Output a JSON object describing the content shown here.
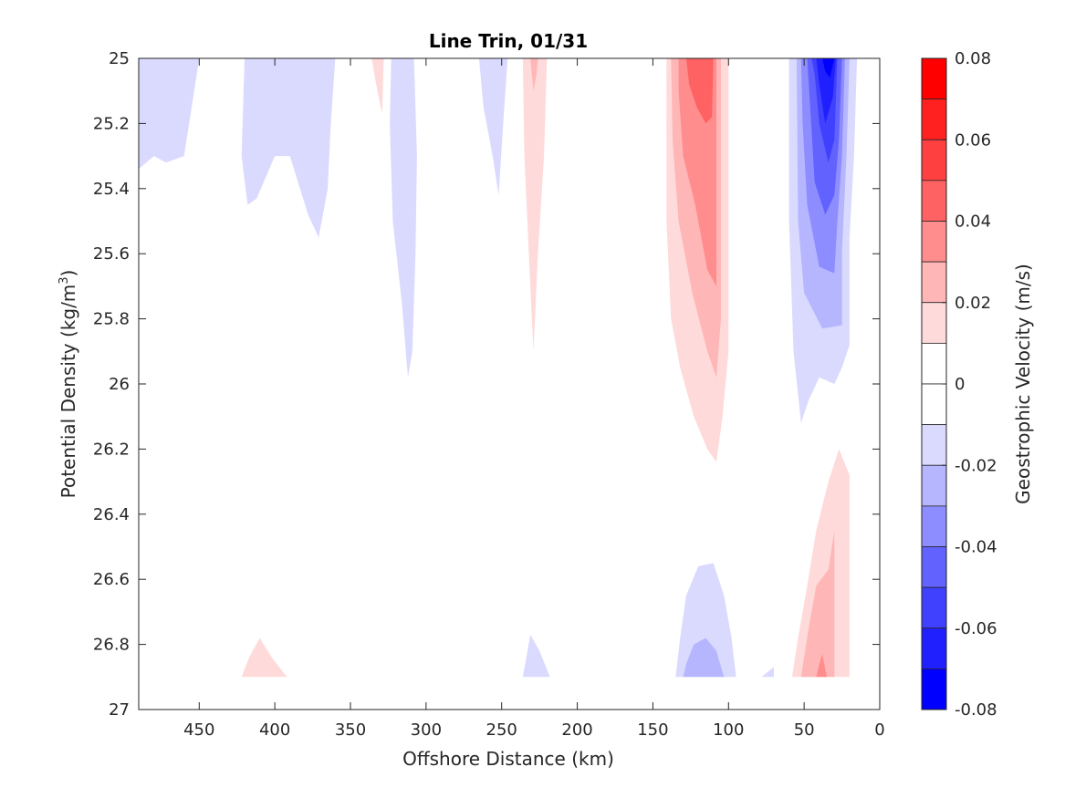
{
  "chart_data": {
    "type": "contour",
    "title": "Line Trin, 01/31",
    "xlabel": "Offshore Distance (km)",
    "ylabel": "Potential Density (kg/m",
    "ylabel_sup": "3",
    "ylabel_close": ")",
    "colorbar_label": "Geostrophic Velocity (m/s)",
    "xlim": [
      490,
      0
    ],
    "ylim": [
      25,
      27
    ],
    "x_reversed": true,
    "y_reversed": true,
    "x_ticks": [
      450,
      400,
      350,
      300,
      250,
      200,
      150,
      100,
      50,
      0
    ],
    "x_tick_labels": [
      "450",
      "400",
      "350",
      "300",
      "250",
      "200",
      "150",
      "100",
      "50",
      "0"
    ],
    "y_ticks": [
      25,
      25.2,
      25.4,
      25.6,
      25.8,
      26,
      26.2,
      26.4,
      26.6,
      26.8,
      27
    ],
    "y_tick_labels": [
      "25",
      "25.2",
      "25.4",
      "25.6",
      "25.8",
      "26",
      "26.2",
      "26.4",
      "26.6",
      "26.8",
      "27"
    ],
    "colorbar": {
      "range": [
        -0.08,
        0.08
      ],
      "ticks": [
        0.08,
        0.06,
        0.04,
        0.02,
        0,
        -0.02,
        -0.04,
        -0.06,
        -0.08
      ],
      "tick_labels": [
        "0.08",
        "0.06",
        "0.04",
        "0.02",
        "0",
        "-0.02",
        "-0.04",
        "-0.06",
        "-0.08"
      ],
      "levels": [
        {
          "lo": 0.07,
          "hi": 0.08,
          "color": "#ff0000"
        },
        {
          "lo": 0.06,
          "hi": 0.07,
          "color": "#ff2020"
        },
        {
          "lo": 0.05,
          "hi": 0.06,
          "color": "#ff4040"
        },
        {
          "lo": 0.04,
          "hi": 0.05,
          "color": "#ff6262"
        },
        {
          "lo": 0.03,
          "hi": 0.04,
          "color": "#ff8d8d"
        },
        {
          "lo": 0.02,
          "hi": 0.03,
          "color": "#ffb6b6"
        },
        {
          "lo": 0.01,
          "hi": 0.02,
          "color": "#ffdada"
        },
        {
          "lo": 0.0,
          "hi": 0.01,
          "color": "#ffffff"
        },
        {
          "lo": -0.01,
          "hi": 0.0,
          "color": "#ffffff"
        },
        {
          "lo": -0.02,
          "hi": -0.01,
          "color": "#dadaff"
        },
        {
          "lo": -0.03,
          "hi": -0.02,
          "color": "#b6b6ff"
        },
        {
          "lo": -0.04,
          "hi": -0.03,
          "color": "#8d8dff"
        },
        {
          "lo": -0.05,
          "hi": -0.04,
          "color": "#6262ff"
        },
        {
          "lo": -0.06,
          "hi": -0.05,
          "color": "#4040ff"
        },
        {
          "lo": -0.07,
          "hi": -0.06,
          "color": "#2020ff"
        },
        {
          "lo": -0.08,
          "hi": -0.07,
          "color": "#0000ff"
        }
      ]
    },
    "contour_regions": [
      {
        "name": "neg-region-offshore-far",
        "level": -0.015,
        "color": "#dadaff",
        "points": [
          [
            490,
            25
          ],
          [
            450,
            25
          ],
          [
            460,
            25.3
          ],
          [
            472,
            25.32
          ],
          [
            480,
            25.3
          ],
          [
            490,
            25.34
          ]
        ]
      },
      {
        "name": "neg-region-offshore-mid",
        "level": -0.015,
        "color": "#dadaff",
        "points": [
          [
            420,
            25
          ],
          [
            360,
            25
          ],
          [
            363,
            25.2
          ],
          [
            365,
            25.4
          ],
          [
            371,
            25.55
          ],
          [
            378,
            25.48
          ],
          [
            390,
            25.3
          ],
          [
            400,
            25.3
          ],
          [
            412,
            25.43
          ],
          [
            418,
            25.45
          ],
          [
            422,
            25.3
          ]
        ]
      },
      {
        "name": "neg-region-300km",
        "level": -0.015,
        "color": "#dadaff",
        "points": [
          [
            323,
            25
          ],
          [
            308,
            25
          ],
          [
            306,
            25.3
          ],
          [
            307,
            25.6
          ],
          [
            309,
            25.9
          ],
          [
            312,
            25.98
          ],
          [
            316,
            25.75
          ],
          [
            322,
            25.5
          ],
          [
            324,
            25.2
          ]
        ]
      },
      {
        "name": "neg-region-255km",
        "level": -0.015,
        "color": "#dadaff",
        "points": [
          [
            265,
            25
          ],
          [
            246,
            25
          ],
          [
            249,
            25.2
          ],
          [
            252,
            25.42
          ],
          [
            256,
            25.3
          ],
          [
            262,
            25.15
          ]
        ]
      },
      {
        "name": "neg-region-coastal-1",
        "level": -0.015,
        "color": "#dadaff",
        "points": [
          [
            60,
            25
          ],
          [
            15,
            25
          ],
          [
            17,
            25.3
          ],
          [
            20,
            25.55
          ],
          [
            20,
            25.88
          ],
          [
            25,
            25.95
          ],
          [
            30,
            26.0
          ],
          [
            40,
            25.98
          ],
          [
            47,
            26.05
          ],
          [
            52,
            26.12
          ],
          [
            57,
            25.9
          ],
          [
            60,
            25.5
          ]
        ]
      },
      {
        "name": "neg-region-coastal-2",
        "level": -0.025,
        "color": "#b6b6ff",
        "points": [
          [
            55,
            25
          ],
          [
            20,
            25
          ],
          [
            22,
            25.3
          ],
          [
            25,
            25.6
          ],
          [
            25,
            25.82
          ],
          [
            38,
            25.83
          ],
          [
            50,
            25.72
          ],
          [
            54,
            25.5
          ]
        ]
      },
      {
        "name": "neg-region-coastal-3",
        "level": -0.035,
        "color": "#8d8dff",
        "points": [
          [
            52,
            25
          ],
          [
            23,
            25
          ],
          [
            25,
            25.3
          ],
          [
            28,
            25.5
          ],
          [
            30,
            25.66
          ],
          [
            40,
            25.64
          ],
          [
            48,
            25.45
          ],
          [
            51,
            25.2
          ]
        ]
      },
      {
        "name": "neg-region-coastal-4",
        "level": -0.045,
        "color": "#6262ff",
        "points": [
          [
            48,
            25
          ],
          [
            25,
            25
          ],
          [
            27,
            25.25
          ],
          [
            30,
            25.42
          ],
          [
            36,
            25.48
          ],
          [
            43,
            25.38
          ],
          [
            46,
            25.15
          ]
        ]
      },
      {
        "name": "neg-region-coastal-5",
        "level": -0.055,
        "color": "#4040ff",
        "points": [
          [
            45,
            25
          ],
          [
            28,
            25
          ],
          [
            30,
            25.25
          ],
          [
            34,
            25.32
          ],
          [
            40,
            25.2
          ],
          [
            43,
            25.05
          ]
        ]
      },
      {
        "name": "neg-region-coastal-6",
        "level": -0.065,
        "color": "#2020ff",
        "points": [
          [
            42,
            25
          ],
          [
            29,
            25
          ],
          [
            31,
            25.12
          ],
          [
            36,
            25.2
          ],
          [
            40,
            25.08
          ]
        ]
      },
      {
        "name": "neg-region-coastal-7",
        "level": -0.075,
        "color": "#0000ff",
        "points": [
          [
            38,
            25
          ],
          [
            30,
            25
          ],
          [
            33,
            25.06
          ],
          [
            36,
            25.04
          ]
        ]
      },
      {
        "name": "pos-region-335km",
        "level": 0.015,
        "color": "#ffdada",
        "points": [
          [
            336,
            25
          ],
          [
            328,
            25
          ],
          [
            329,
            25.17
          ],
          [
            333,
            25.08
          ]
        ]
      },
      {
        "name": "pos-region-230km",
        "level": 0.015,
        "color": "#ffdada",
        "points": [
          [
            236,
            25
          ],
          [
            220,
            25
          ],
          [
            222,
            25.3
          ],
          [
            226,
            25.6
          ],
          [
            229,
            25.9
          ],
          [
            232,
            25.6
          ],
          [
            235,
            25.3
          ]
        ]
      },
      {
        "name": "pos-region-230km-core",
        "level": 0.025,
        "color": "#ffb6b6",
        "points": [
          [
            231,
            25
          ],
          [
            226,
            25
          ],
          [
            227,
            25.05
          ],
          [
            229,
            25.1
          ],
          [
            230,
            25.05
          ]
        ]
      },
      {
        "name": "pos-region-120km-1",
        "level": 0.015,
        "color": "#ffdada",
        "points": [
          [
            141,
            25
          ],
          [
            100,
            25
          ],
          [
            100,
            25.4
          ],
          [
            100,
            25.9
          ],
          [
            104,
            26.1
          ],
          [
            108,
            26.24
          ],
          [
            114,
            26.2
          ],
          [
            123,
            26.1
          ],
          [
            132,
            25.95
          ],
          [
            138,
            25.8
          ],
          [
            141,
            25.5
          ]
        ]
      },
      {
        "name": "pos-region-120km-2",
        "level": 0.025,
        "color": "#ffb6b6",
        "points": [
          [
            138,
            25
          ],
          [
            105,
            25
          ],
          [
            105,
            25.4
          ],
          [
            105,
            25.8
          ],
          [
            108,
            25.98
          ],
          [
            114,
            25.9
          ],
          [
            124,
            25.72
          ],
          [
            133,
            25.5
          ],
          [
            137,
            25.25
          ]
        ]
      },
      {
        "name": "pos-region-120km-3",
        "level": 0.035,
        "color": "#ff8d8d",
        "points": [
          [
            133,
            25
          ],
          [
            108,
            25
          ],
          [
            108,
            25.35
          ],
          [
            108,
            25.7
          ],
          [
            114,
            25.65
          ],
          [
            122,
            25.45
          ],
          [
            130,
            25.3
          ],
          [
            133,
            25.1
          ]
        ]
      },
      {
        "name": "pos-region-120km-4",
        "level": 0.045,
        "color": "#ff6262",
        "points": [
          [
            128,
            25
          ],
          [
            110,
            25
          ],
          [
            111,
            25.18
          ],
          [
            115,
            25.2
          ],
          [
            121,
            25.15
          ],
          [
            126,
            25.08
          ]
        ]
      },
      {
        "name": "pos-region-coastal-deep-1",
        "level": 0.015,
        "color": "#ffdada",
        "points": [
          [
            58,
            26.9
          ],
          [
            20,
            26.9
          ],
          [
            20,
            26.6
          ],
          [
            20,
            26.28
          ],
          [
            27,
            26.2
          ],
          [
            34,
            26.3
          ],
          [
            42,
            26.45
          ],
          [
            48,
            26.62
          ],
          [
            54,
            26.78
          ]
        ]
      },
      {
        "name": "pos-region-coastal-deep-2",
        "level": 0.025,
        "color": "#ffb6b6",
        "points": [
          [
            52,
            26.9
          ],
          [
            30,
            26.9
          ],
          [
            30,
            26.7
          ],
          [
            30,
            26.45
          ],
          [
            34,
            26.57
          ],
          [
            42,
            26.62
          ],
          [
            47,
            26.75
          ]
        ]
      },
      {
        "name": "pos-region-coastal-deep-3",
        "level": 0.035,
        "color": "#ff8d8d",
        "points": [
          [
            42,
            26.9
          ],
          [
            35,
            26.9
          ],
          [
            38,
            26.83
          ],
          [
            40,
            26.86
          ]
        ]
      },
      {
        "name": "pos-region-410km",
        "level": 0.015,
        "color": "#ffdada",
        "points": [
          [
            422,
            26.9
          ],
          [
            392,
            26.9
          ],
          [
            402,
            26.84
          ],
          [
            410,
            26.78
          ],
          [
            417,
            26.84
          ]
        ]
      },
      {
        "name": "neg-region-deep-120km-1",
        "level": -0.015,
        "color": "#dadaff",
        "points": [
          [
            135,
            26.9
          ],
          [
            95,
            26.9
          ],
          [
            98,
            26.78
          ],
          [
            103,
            26.65
          ],
          [
            110,
            26.55
          ],
          [
            120,
            26.56
          ],
          [
            128,
            26.65
          ],
          [
            132,
            26.78
          ]
        ]
      },
      {
        "name": "neg-region-deep-120km-2",
        "level": -0.025,
        "color": "#b6b6ff",
        "points": [
          [
            130,
            26.9
          ],
          [
            103,
            26.9
          ],
          [
            108,
            26.82
          ],
          [
            115,
            26.78
          ],
          [
            123,
            26.8
          ],
          [
            128,
            26.86
          ]
        ]
      },
      {
        "name": "neg-region-deep-230km",
        "level": -0.015,
        "color": "#dadaff",
        "points": [
          [
            236,
            26.9
          ],
          [
            218,
            26.9
          ],
          [
            225,
            26.82
          ],
          [
            231,
            26.77
          ]
        ]
      },
      {
        "name": "neg-region-deep-75km",
        "level": -0.015,
        "color": "#dadaff",
        "points": [
          [
            78,
            26.9
          ],
          [
            70,
            26.9
          ],
          [
            70,
            26.87
          ],
          [
            73,
            26.88
          ]
        ]
      }
    ]
  }
}
